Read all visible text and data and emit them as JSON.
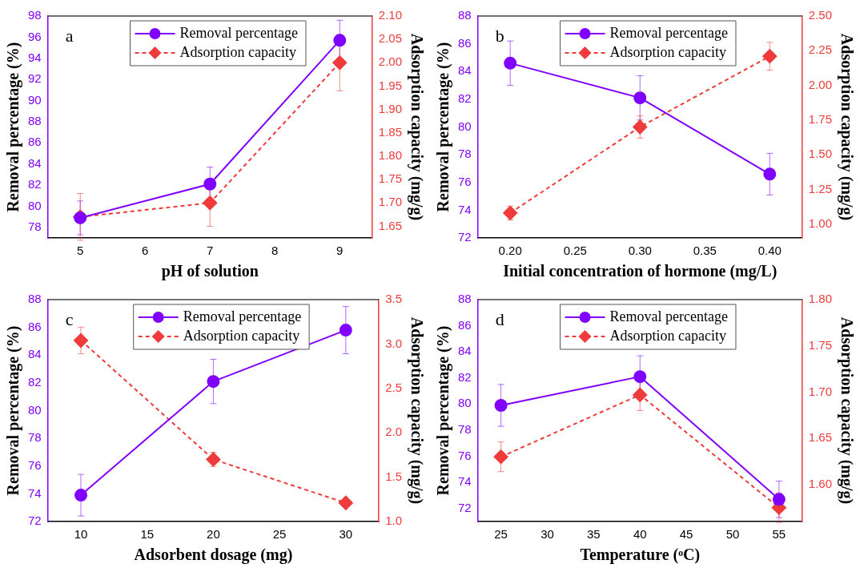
{
  "chart_data": [
    {
      "type": "line",
      "annotations": [
        "a"
      ],
      "xlabel": "pH of solution",
      "ylabel": "Removal percentage (%)",
      "y2label": "Adsorption capacity (mg/g)",
      "x": [
        5,
        7,
        9
      ],
      "xlim": [
        4.5,
        9.5
      ],
      "xticks": [
        5,
        6,
        7,
        8,
        9
      ],
      "ylim": [
        77,
        98
      ],
      "yticks": [
        78,
        80,
        82,
        84,
        86,
        88,
        90,
        92,
        94,
        96,
        98
      ],
      "y2lim": [
        1.625,
        2.1
      ],
      "y2ticks": [
        {
          "value": 1.65,
          "label": "1.65"
        },
        {
          "value": 1.7,
          "label": "1.70"
        },
        {
          "value": 1.75,
          "label": "1.75"
        },
        {
          "value": 1.8,
          "label": "1.80"
        },
        {
          "value": 1.85,
          "label": "1.85"
        },
        {
          "value": 1.9,
          "label": "1.90"
        },
        {
          "value": 1.95,
          "label": "1.95"
        },
        {
          "value": 2.0,
          "label": "2.00"
        },
        {
          "value": 2.05,
          "label": "2.05"
        },
        {
          "value": 2.1,
          "label": "2.10"
        }
      ],
      "legend": "top",
      "grid": false,
      "series": [
        {
          "name": "Removal percentage",
          "color": "#8000ff",
          "marker": "circle",
          "line_style": "solid",
          "values": [
            78.9,
            82.1,
            95.7
          ],
          "errors": [
            1.6,
            1.6,
            1.9
          ]
        },
        {
          "name": "Adsorption capacity",
          "color": "#ef3b3b",
          "marker": "diamond",
          "line_style": "dashed",
          "axis": "y2",
          "values": [
            1.67,
            1.7,
            2.0
          ],
          "errors": [
            0.05,
            0.05,
            0.06
          ]
        }
      ]
    },
    {
      "type": "line",
      "annotations": [
        "b"
      ],
      "xlabel": "Initial concentration of hormone (mg/L)",
      "ylabel": "Removal percentage (%)",
      "y2label": "Adsorption capacity (mg/g)",
      "x": [
        0.2,
        0.3,
        0.4
      ],
      "xlim": [
        0.175,
        0.425
      ],
      "xticks": [
        {
          "value": 0.2,
          "label": "0.20"
        },
        {
          "value": 0.25,
          "label": "0.25"
        },
        {
          "value": 0.3,
          "label": "0.30"
        },
        {
          "value": 0.35,
          "label": "0.35"
        },
        {
          "value": 0.4,
          "label": "0.40"
        }
      ],
      "ylim": [
        72,
        88
      ],
      "yticks": [
        72,
        74,
        76,
        78,
        80,
        82,
        84,
        86,
        88
      ],
      "y2lim": [
        0.9,
        2.5
      ],
      "y2ticks": [
        {
          "value": 1.0,
          "label": "1.00"
        },
        {
          "value": 1.25,
          "label": "1.25"
        },
        {
          "value": 1.5,
          "label": "1.50"
        },
        {
          "value": 1.75,
          "label": "1.75"
        },
        {
          "value": 2.0,
          "label": "2.00"
        },
        {
          "value": 2.25,
          "label": "2.25"
        },
        {
          "value": 2.5,
          "label": "2.50"
        }
      ],
      "legend": "top",
      "grid": false,
      "series": [
        {
          "name": "Removal percentage",
          "color": "#8000ff",
          "marker": "circle",
          "line_style": "solid",
          "values": [
            84.6,
            82.1,
            76.6
          ],
          "errors": [
            1.6,
            1.6,
            1.5
          ]
        },
        {
          "name": "Adsorption capacity",
          "color": "#ef3b3b",
          "marker": "diamond",
          "line_style": "dashed",
          "axis": "y2",
          "values": [
            1.08,
            1.7,
            2.21
          ],
          "errors": [
            0.05,
            0.08,
            0.1
          ]
        }
      ]
    },
    {
      "type": "line",
      "annotations": [
        "c"
      ],
      "xlabel": "Adsorbent dosage (mg)",
      "ylabel": "Removal percentage (%)",
      "y2label": "Adsorption capacity (mg/g)",
      "x": [
        10,
        20,
        30
      ],
      "xlim": [
        7.5,
        32.5
      ],
      "xticks": [
        10,
        15,
        20,
        25,
        30
      ],
      "ylim": [
        72,
        88
      ],
      "yticks": [
        72,
        74,
        76,
        78,
        80,
        82,
        84,
        86,
        88
      ],
      "y2lim": [
        1.0,
        3.5
      ],
      "y2ticks": [
        {
          "value": 1.0,
          "label": "1.0"
        },
        1.5,
        {
          "value": 2.0,
          "label": "2.0"
        },
        2.5,
        {
          "value": 3.0,
          "label": "3.0"
        },
        3.5
      ],
      "legend": "top",
      "grid": false,
      "series": [
        {
          "name": "Removal percentage",
          "color": "#8000ff",
          "marker": "circle",
          "line_style": "solid",
          "values": [
            73.9,
            82.1,
            85.8
          ],
          "errors": [
            1.5,
            1.6,
            1.7
          ]
        },
        {
          "name": "Adsorption capacity",
          "color": "#ef3b3b",
          "marker": "diamond",
          "line_style": "dashed",
          "axis": "y2",
          "values": [
            3.04,
            1.7,
            1.21
          ],
          "errors": [
            0.15,
            0.08,
            null
          ]
        }
      ]
    },
    {
      "type": "line",
      "annotations": [
        "d"
      ],
      "xlabel": "Temperature (ᵒC)",
      "ylabel": "Removal percentage (%)",
      "y2label": "Adsorption capacity (mg/g)",
      "x": [
        25,
        40,
        55
      ],
      "xlim": [
        22.5,
        57.5
      ],
      "xticks": [
        25,
        30,
        35,
        40,
        45,
        50,
        55
      ],
      "ylim": [
        71,
        88
      ],
      "yticks": [
        72,
        74,
        76,
        78,
        80,
        82,
        84,
        86,
        88
      ],
      "y2lim": [
        1.56,
        1.8
      ],
      "y2ticks": [
        {
          "value": 1.6,
          "label": "1.60"
        },
        1.65,
        {
          "value": 1.7,
          "label": "1.70"
        },
        1.75,
        {
          "value": 1.8,
          "label": "1.80"
        }
      ],
      "legend": "top",
      "grid": false,
      "series": [
        {
          "name": "Removal percentage",
          "color": "#8000ff",
          "marker": "circle",
          "line_style": "solid",
          "values": [
            79.9,
            82.1,
            72.7
          ],
          "errors": [
            1.6,
            1.6,
            1.4
          ]
        },
        {
          "name": "Adsorption capacity",
          "color": "#ef3b3b",
          "marker": "diamond",
          "line_style": "dashed",
          "axis": "y2",
          "values": [
            1.63,
            1.697,
            1.575
          ],
          "errors": [
            0.016,
            0.017,
            0.016
          ]
        }
      ]
    }
  ]
}
